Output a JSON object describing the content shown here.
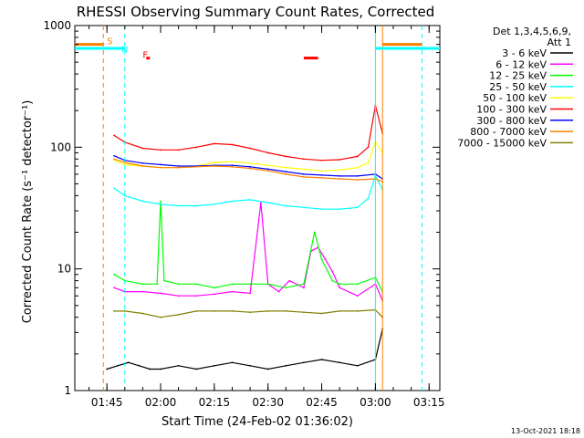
{
  "chart_data": {
    "type": "line",
    "title": "RHESSI Observing Summary Count Rates, Corrected",
    "xlabel": "Start Time (24-Feb-02 01:36:02)",
    "ylabel": "Corrected Count Rate (s⁻¹ detector⁻¹)",
    "yscale": "log",
    "ylim": [
      1,
      1000
    ],
    "xlim": [
      "01:36:02",
      "03:18:00"
    ],
    "x_ticks": [
      "01:45",
      "02:00",
      "02:15",
      "02:30",
      "02:45",
      "03:00",
      "03:15"
    ],
    "y_ticks": [
      "1",
      "10",
      "100",
      "1000"
    ],
    "legend_title": [
      "Det 1,3,4,5,6,9,",
      "Att 1"
    ],
    "legend_position": "right",
    "series": [
      {
        "name": "3 - 6 keV",
        "color": "#000000",
        "x": [
          "01:45",
          "01:48",
          "01:51",
          "01:54",
          "01:57",
          "02:00",
          "02:05",
          "02:10",
          "02:15",
          "02:20",
          "02:25",
          "02:30",
          "02:35",
          "02:40",
          "02:45",
          "02:50",
          "02:55",
          "03:00",
          "03:02"
        ],
        "values": [
          1.5,
          1.6,
          1.7,
          1.6,
          1.5,
          1.5,
          1.6,
          1.5,
          1.6,
          1.7,
          1.6,
          1.5,
          1.6,
          1.7,
          1.8,
          1.7,
          1.6,
          1.8,
          3.2
        ]
      },
      {
        "name": "6 - 12 keV",
        "color": "#ff00ff",
        "x": [
          "01:47",
          "01:50",
          "01:55",
          "02:00",
          "02:05",
          "02:10",
          "02:15",
          "02:20",
          "02:25",
          "02:28",
          "02:30",
          "02:33",
          "02:36",
          "02:40",
          "02:42",
          "02:44",
          "02:46",
          "02:48",
          "02:50",
          "02:55",
          "03:00",
          "03:02"
        ],
        "values": [
          7.0,
          6.5,
          6.5,
          6.3,
          6.0,
          6.0,
          6.2,
          6.5,
          6.3,
          35,
          7.5,
          6.5,
          8.0,
          7.0,
          14,
          15,
          12,
          9.5,
          7.0,
          6.0,
          7.5,
          5.5
        ]
      },
      {
        "name": "12 - 25 keV",
        "color": "#00ff00",
        "x": [
          "01:47",
          "01:50",
          "01:55",
          "01:59",
          "02:00",
          "02:01",
          "02:05",
          "02:10",
          "02:15",
          "02:20",
          "02:25",
          "02:30",
          "02:35",
          "02:40",
          "02:43",
          "02:45",
          "02:48",
          "02:50",
          "02:55",
          "03:00",
          "03:02"
        ],
        "values": [
          9.0,
          8.0,
          7.5,
          7.5,
          36,
          8.0,
          7.5,
          7.5,
          7.0,
          7.5,
          7.5,
          7.5,
          7.0,
          7.5,
          20,
          12,
          8.0,
          7.5,
          7.5,
          8.5,
          6.5
        ]
      },
      {
        "name": "25 - 50 keV",
        "color": "#00ffff",
        "x": [
          "01:47",
          "01:50",
          "01:55",
          "02:00",
          "02:05",
          "02:10",
          "02:15",
          "02:20",
          "02:25",
          "02:30",
          "02:35",
          "02:40",
          "02:45",
          "02:50",
          "02:55",
          "02:58",
          "03:00",
          "03:02"
        ],
        "values": [
          46,
          40,
          36,
          34,
          33,
          33,
          34,
          36,
          37,
          35,
          33,
          32,
          31,
          31,
          32,
          38,
          58,
          45
        ]
      },
      {
        "name": "50 - 100 keV",
        "color": "#ffff00",
        "x": [
          "01:47",
          "01:50",
          "01:55",
          "02:00",
          "02:05",
          "02:10",
          "02:15",
          "02:20",
          "02:25",
          "02:30",
          "02:35",
          "02:40",
          "02:45",
          "02:50",
          "02:55",
          "02:58",
          "03:00",
          "03:02"
        ],
        "values": [
          78,
          72,
          70,
          68,
          68,
          70,
          75,
          76,
          74,
          71,
          68,
          66,
          64,
          65,
          68,
          75,
          110,
          90
        ]
      },
      {
        "name": "100 - 300 keV",
        "color": "#ff0000",
        "x": [
          "01:47",
          "01:50",
          "01:55",
          "02:00",
          "02:05",
          "02:10",
          "02:15",
          "02:20",
          "02:25",
          "02:30",
          "02:35",
          "02:40",
          "02:45",
          "02:50",
          "02:55",
          "02:58",
          "03:00",
          "03:02"
        ],
        "values": [
          125,
          110,
          98,
          95,
          95,
          100,
          107,
          105,
          98,
          90,
          84,
          80,
          78,
          79,
          84,
          100,
          220,
          130
        ]
      },
      {
        "name": "300 - 800 keV",
        "color": "#0000ff",
        "x": [
          "01:47",
          "01:50",
          "01:55",
          "02:00",
          "02:05",
          "02:10",
          "02:15",
          "02:20",
          "02:25",
          "02:30",
          "02:35",
          "02:40",
          "02:45",
          "02:50",
          "02:55",
          "03:00",
          "03:02"
        ],
        "values": [
          85,
          78,
          74,
          72,
          70,
          70,
          71,
          71,
          69,
          66,
          63,
          60,
          59,
          58,
          58,
          60,
          55
        ]
      },
      {
        "name": "800 - 7000 keV",
        "color": "#ff8000",
        "x": [
          "01:47",
          "01:50",
          "01:55",
          "02:00",
          "02:05",
          "02:10",
          "02:15",
          "02:20",
          "02:25",
          "02:30",
          "02:35",
          "02:40",
          "02:45",
          "02:50",
          "02:55",
          "03:00",
          "03:02"
        ],
        "values": [
          80,
          75,
          70,
          68,
          68,
          69,
          70,
          69,
          67,
          64,
          60,
          57,
          56,
          55,
          54,
          55,
          52
        ]
      },
      {
        "name": "7000 - 15000 keV",
        "color": "#808000",
        "x": [
          "01:47",
          "01:50",
          "01:55",
          "02:00",
          "02:05",
          "02:10",
          "02:15",
          "02:20",
          "02:25",
          "02:30",
          "02:35",
          "02:40",
          "02:45",
          "02:50",
          "02:55",
          "03:00",
          "03:02"
        ],
        "values": [
          4.5,
          4.5,
          4.3,
          4.0,
          4.2,
          4.5,
          4.5,
          4.5,
          4.4,
          4.5,
          4.5,
          4.4,
          4.3,
          4.5,
          4.5,
          4.6,
          4.0
        ]
      }
    ],
    "markers": [
      {
        "label": "S",
        "color": "#ff8000"
      },
      {
        "label": "N",
        "color": "#00ffff"
      },
      {
        "label": "F",
        "color": "#ff0000"
      }
    ],
    "vertical_lines": [
      {
        "x": "01:44",
        "color": "#ff8000",
        "style": "dashed"
      },
      {
        "x": "01:50",
        "color": "#00ffff",
        "style": "dashed"
      },
      {
        "x": "03:00",
        "color": "#00ffff",
        "style": "solid"
      },
      {
        "x": "03:02",
        "color": "#ff8000",
        "style": "solid"
      },
      {
        "x": "03:13",
        "color": "#00ffff",
        "style": "dashed"
      }
    ],
    "horizontal_bars": [
      {
        "y": 700,
        "x_start": "01:36:02",
        "x_end": "01:44",
        "color": "#ff8000"
      },
      {
        "y": 650,
        "x_start": "01:36:02",
        "x_end": "01:50",
        "color": "#00ffff"
      },
      {
        "y": 700,
        "x_start": "03:02",
        "x_end": "03:13",
        "color": "#ff8000"
      },
      {
        "y": 650,
        "x_start": "03:00",
        "x_end": "03:18:00",
        "color": "#00ffff"
      },
      {
        "y": 540,
        "x_start": "01:56",
        "x_end": "01:57",
        "color": "#ff0000"
      },
      {
        "y": 540,
        "x_start": "02:40",
        "x_end": "02:44",
        "color": "#ff0000"
      }
    ]
  },
  "footer": {
    "date_stamp": "13-Oct-2021 18:18"
  }
}
